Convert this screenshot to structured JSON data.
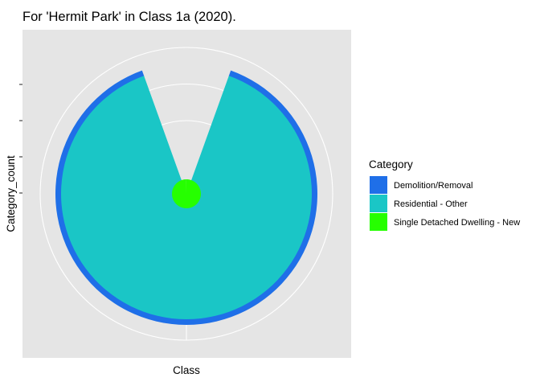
{
  "chart_data": {
    "type": "pie",
    "title": "For 'Hermit Park' in Class 1a (2020).",
    "xlabel": "Class",
    "ylabel": "Category_count",
    "legend_title": "Category",
    "legend_position": "right",
    "polar": true,
    "grid": true,
    "theme_background": "#e5e5e5",
    "series": [
      {
        "name": "Demolition/Removal",
        "values": [
          1
        ],
        "color": "#1f6fe8"
      },
      {
        "name": "Residential - Other",
        "values": [
          35
        ],
        "color": "#1ac6c6"
      },
      {
        "name": "Single Detached Dwelling - New",
        "values": [
          1
        ],
        "color": "#26ff00"
      }
    ]
  }
}
